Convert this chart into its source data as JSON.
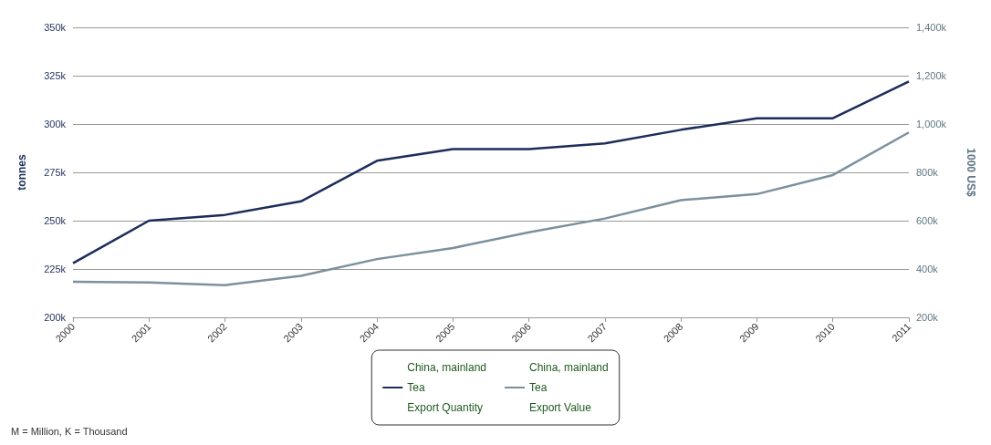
{
  "chart_data": {
    "type": "line",
    "categories": [
      "2000",
      "2001",
      "2002",
      "2003",
      "2004",
      "2005",
      "2006",
      "2007",
      "2008",
      "2009",
      "2010",
      "2011"
    ],
    "series": [
      {
        "name": "China, mainland\nTea\nExport Quantity",
        "color": "#1c2d5a",
        "values": [
          228,
          250,
          253,
          260,
          281,
          287,
          287,
          290,
          297,
          303,
          303,
          322
        ]
      },
      {
        "name": "China, mainland\nTea\nExport Value",
        "color": "#7b909e",
        "axis": "y2",
        "values": [
          347,
          344,
          333,
          372,
          441,
          487,
          552,
          609,
          685,
          710,
          789,
          965
        ]
      }
    ],
    "ylabel": "tonnes",
    "y2label": "1000 US$",
    "ylim": [
      200,
      350
    ],
    "yticks": [
      {
        "value": 200,
        "label": "200k"
      },
      {
        "value": 225,
        "label": "225k"
      },
      {
        "value": 250,
        "label": "250k"
      },
      {
        "value": 275,
        "label": "275k"
      },
      {
        "value": 300,
        "label": "300k"
      },
      {
        "value": 325,
        "label": "325k"
      },
      {
        "value": 350,
        "label": "350k"
      }
    ],
    "y2lim": [
      200,
      1400
    ],
    "y2ticks": [
      {
        "value": 200,
        "label": "200k"
      },
      {
        "value": 400,
        "label": "400k"
      },
      {
        "value": 600,
        "label": "600k"
      },
      {
        "value": 800,
        "label": "800k"
      },
      {
        "value": 1000,
        "label": "1,000k"
      },
      {
        "value": 1200,
        "label": "1,200k"
      },
      {
        "value": 1400,
        "label": "1,400k"
      }
    ],
    "grid": "y",
    "legend": "bottom",
    "marker": "none",
    "line_style": "solid",
    "annotations": [
      "M = Million, K = Thousand"
    ]
  }
}
